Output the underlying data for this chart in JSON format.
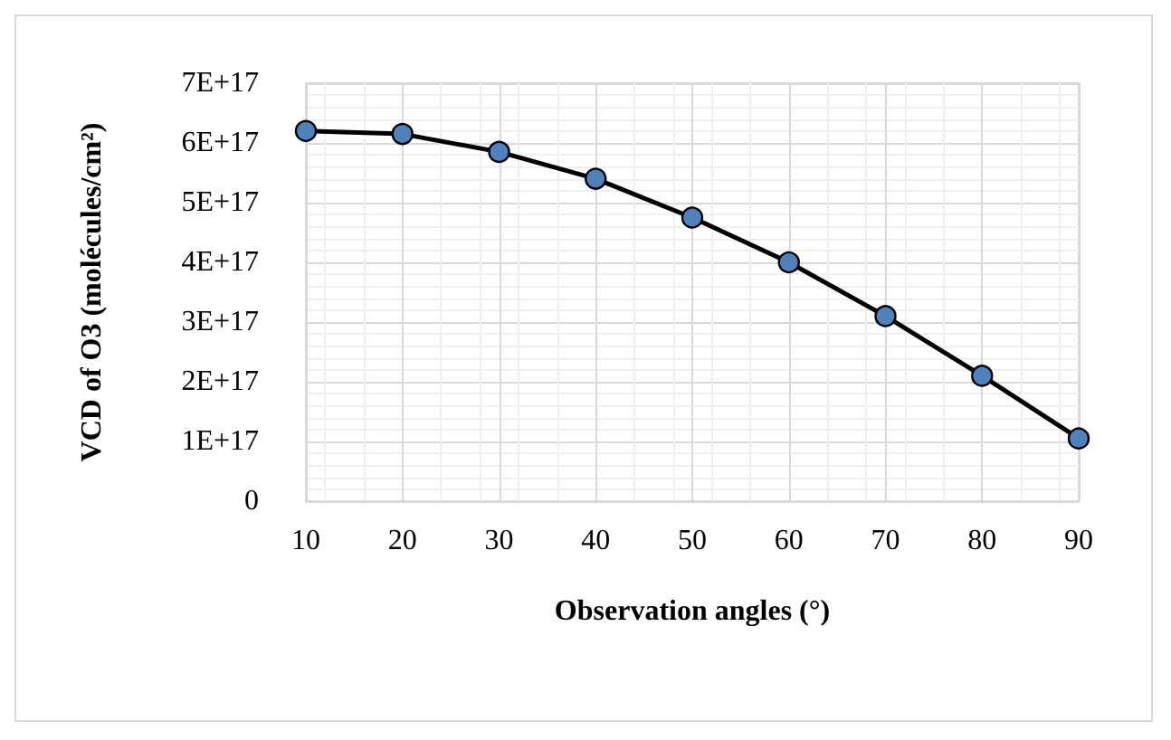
{
  "chart_data": {
    "type": "line",
    "xlabel": "Observation angles (°)",
    "ylabel": "VCD of O3 (molécules/cm²)",
    "x": [
      10,
      20,
      30,
      40,
      50,
      60,
      70,
      80,
      90
    ],
    "series": [
      {
        "color": "#4f81bd",
        "values": [
          6.2e+17,
          6.15e+17,
          5.85e+17,
          5.4e+17,
          4.75e+17,
          4e+17,
          3.1e+17,
          2.1e+17,
          1.05e+17
        ]
      }
    ],
    "xlim": [
      10,
      90
    ],
    "xticks": [
      10,
      20,
      30,
      40,
      50,
      60,
      70,
      80,
      90
    ],
    "ylim": [
      0,
      7e+17
    ],
    "yticks": [
      0,
      {
        "value": 1e+17,
        "label": "1E+17"
      },
      {
        "value": 2e+17,
        "label": "2E+17"
      },
      {
        "value": 3e+17,
        "label": "3E+17"
      },
      {
        "value": 4e+17,
        "label": "4E+17"
      },
      {
        "value": 5e+17,
        "label": "5E+17"
      },
      {
        "value": 6e+17,
        "label": "6E+17"
      },
      {
        "value": 7e+17,
        "label": "7E+17"
      }
    ],
    "grid": true,
    "marker": "circle",
    "line_style": "solid"
  }
}
